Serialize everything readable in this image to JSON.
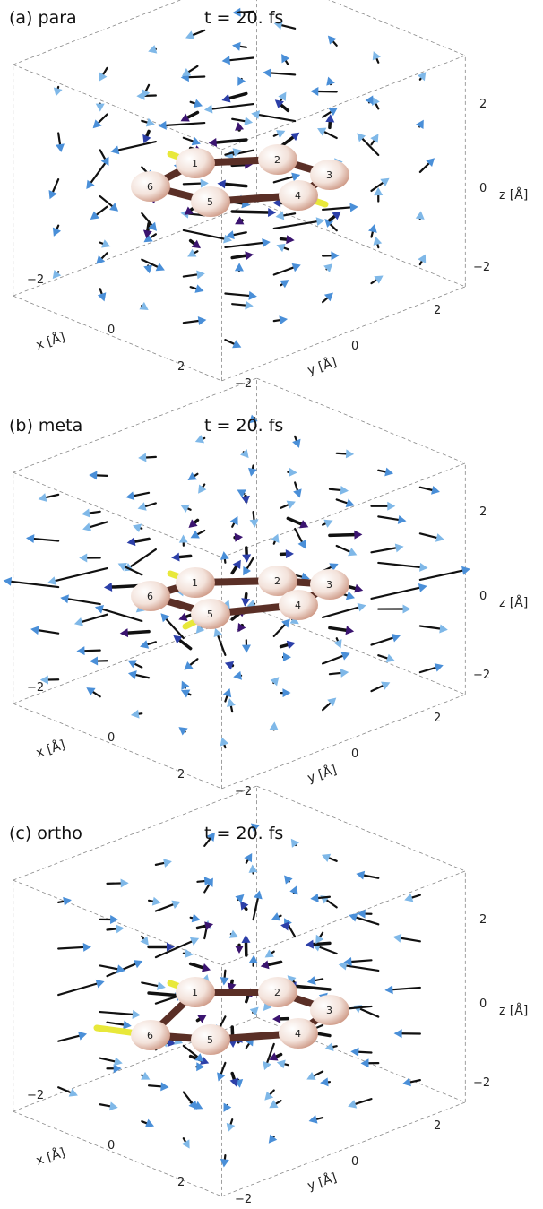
{
  "panels": [
    {
      "label": "(a) para",
      "time": "t = 20. fs",
      "x_label": "x [Å]",
      "y_label": "y [Å]",
      "z_label": "z [Å]",
      "x_ticks": [
        "−2",
        "0",
        "2"
      ],
      "y_ticks": [
        "−2",
        "0",
        "2"
      ],
      "z_ticks": [
        "2",
        "0",
        "−2"
      ],
      "atoms": [
        "1",
        "2",
        "3",
        "4",
        "5",
        "6"
      ]
    },
    {
      "label": "(b) meta",
      "time": "t = 20. fs",
      "x_label": "x [Å]",
      "y_label": "y [Å]",
      "z_label": "z [Å]",
      "x_ticks": [
        "−2",
        "0",
        "2"
      ],
      "y_ticks": [
        "−2",
        "0",
        "2"
      ],
      "z_ticks": [
        "2",
        "0",
        "−2"
      ],
      "atoms": [
        "1",
        "2",
        "3",
        "4",
        "5",
        "6"
      ]
    },
    {
      "label": "(c) ortho",
      "time": "t = 20. fs",
      "x_label": "x [Å]",
      "y_label": "y [Å]",
      "z_label": "z [Å]",
      "x_ticks": [
        "−2",
        "0",
        "2"
      ],
      "y_ticks": [
        "−2",
        "0",
        "2"
      ],
      "z_ticks": [
        "2",
        "0",
        "−2"
      ],
      "atoms": [
        "1",
        "2",
        "3",
        "4",
        "5",
        "6"
      ]
    }
  ]
}
